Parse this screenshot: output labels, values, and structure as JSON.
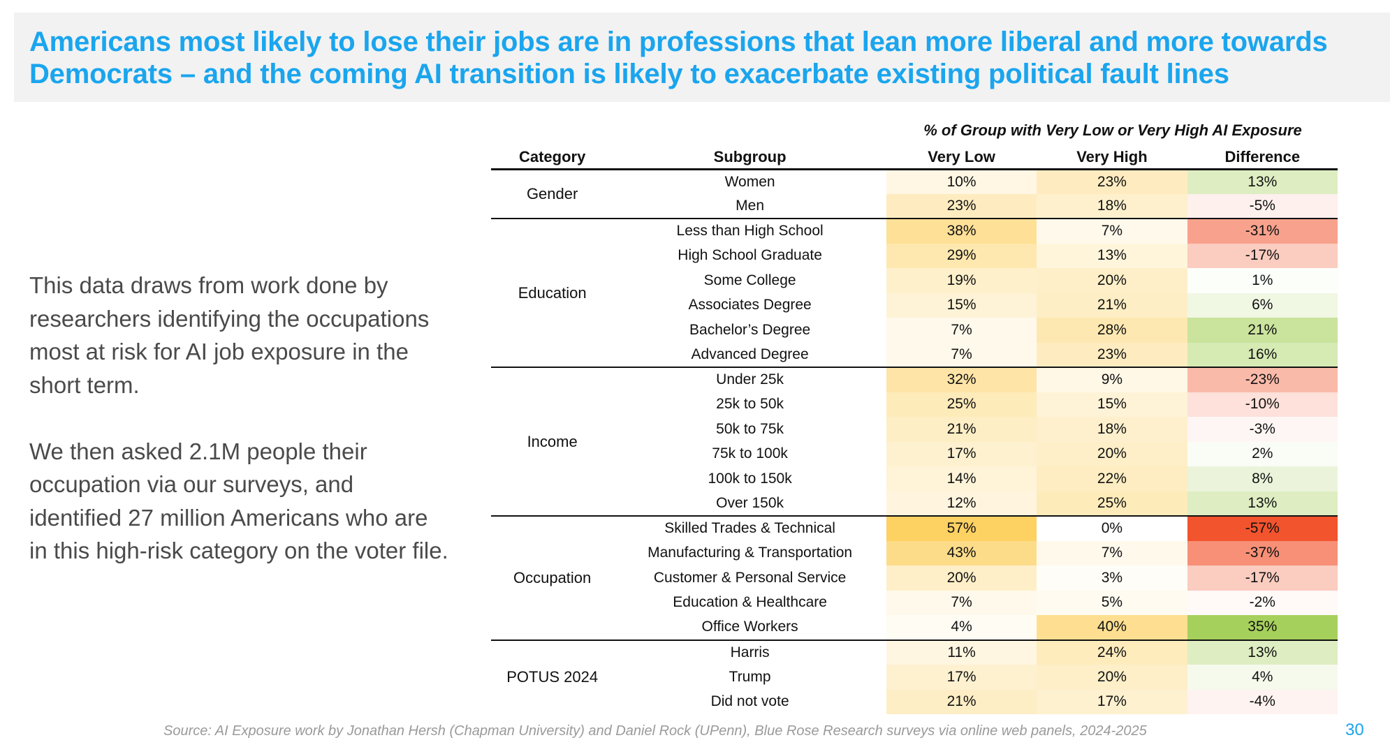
{
  "title": {
    "line1": "Americans most likely to lose their jobs are in professions that lean more liberal and more towards",
    "line2": "Democrats – and the coming AI transition is likely to exacerbate existing political fault lines"
  },
  "body": {
    "paragraph1": "This data draws from work done by researchers identifying the occupations most at risk for AI job exposure in the short term.",
    "paragraph2": "We then asked 2.1M people their occupation via our surveys, and identified 27 million Americans who are in this high-risk category on the voter file."
  },
  "table": {
    "super_header": "% of Group with Very Low or Very High AI Exposure",
    "headers": {
      "category": "Category",
      "subgroup": "Subgroup",
      "very_low": "Very Low",
      "very_high": "Very High",
      "difference": "Difference"
    },
    "groups": [
      {
        "category": "Gender",
        "rows": [
          {
            "subgroup": "Women",
            "very_low": "10%",
            "very_high": "23%",
            "difference": "13%"
          },
          {
            "subgroup": "Men",
            "very_low": "23%",
            "very_high": "18%",
            "difference": "-5%"
          }
        ]
      },
      {
        "category": "Education",
        "rows": [
          {
            "subgroup": "Less than High School",
            "very_low": "38%",
            "very_high": "7%",
            "difference": "-31%"
          },
          {
            "subgroup": "High School Graduate",
            "very_low": "29%",
            "very_high": "13%",
            "difference": "-17%"
          },
          {
            "subgroup": "Some College",
            "very_low": "19%",
            "very_high": "20%",
            "difference": "1%"
          },
          {
            "subgroup": "Associates Degree",
            "very_low": "15%",
            "very_high": "21%",
            "difference": "6%"
          },
          {
            "subgroup": "Bachelor’s Degree",
            "very_low": "7%",
            "very_high": "28%",
            "difference": "21%"
          },
          {
            "subgroup": "Advanced Degree",
            "very_low": "7%",
            "very_high": "23%",
            "difference": "16%"
          }
        ]
      },
      {
        "category": "Income",
        "rows": [
          {
            "subgroup": "Under 25k",
            "very_low": "32%",
            "very_high": "9%",
            "difference": "-23%"
          },
          {
            "subgroup": "25k to 50k",
            "very_low": "25%",
            "very_high": "15%",
            "difference": "-10%"
          },
          {
            "subgroup": "50k to 75k",
            "very_low": "21%",
            "very_high": "18%",
            "difference": "-3%"
          },
          {
            "subgroup": "75k to 100k",
            "very_low": "17%",
            "very_high": "20%",
            "difference": "2%"
          },
          {
            "subgroup": "100k to 150k",
            "very_low": "14%",
            "very_high": "22%",
            "difference": "8%"
          },
          {
            "subgroup": "Over 150k",
            "very_low": "12%",
            "very_high": "25%",
            "difference": "13%"
          }
        ]
      },
      {
        "category": "Occupation",
        "rows": [
          {
            "subgroup": "Skilled Trades & Technical",
            "very_low": "57%",
            "very_high": "0%",
            "difference": "-57%"
          },
          {
            "subgroup": "Manufacturing & Transportation",
            "very_low": "43%",
            "very_high": "7%",
            "difference": "-37%"
          },
          {
            "subgroup": "Customer & Personal Service",
            "very_low": "20%",
            "very_high": "3%",
            "difference": "-17%"
          },
          {
            "subgroup": "Education & Healthcare",
            "very_low": "7%",
            "very_high": "5%",
            "difference": "-2%"
          },
          {
            "subgroup": "Office Workers",
            "very_low": "4%",
            "very_high": "40%",
            "difference": "35%"
          }
        ]
      },
      {
        "category": "POTUS 2024",
        "rows": [
          {
            "subgroup": "Harris",
            "very_low": "11%",
            "very_high": "24%",
            "difference": "13%"
          },
          {
            "subgroup": "Trump",
            "very_low": "17%",
            "very_high": "20%",
            "difference": "4%"
          },
          {
            "subgroup": "Did not vote",
            "very_low": "21%",
            "very_high": "17%",
            "difference": "-4%"
          }
        ]
      }
    ]
  },
  "colors": {
    "title": "#1aa5ee",
    "low_scale_max": "#fdd162",
    "positive_max": "#a6d05c",
    "negative_max": "#f2542d"
  },
  "source": "Source: AI Exposure work by Jonathan Hersh (Chapman University) and Daniel Rock (UPenn), Blue Rose Research surveys via online web panels, 2024-2025",
  "page_number": "30"
}
